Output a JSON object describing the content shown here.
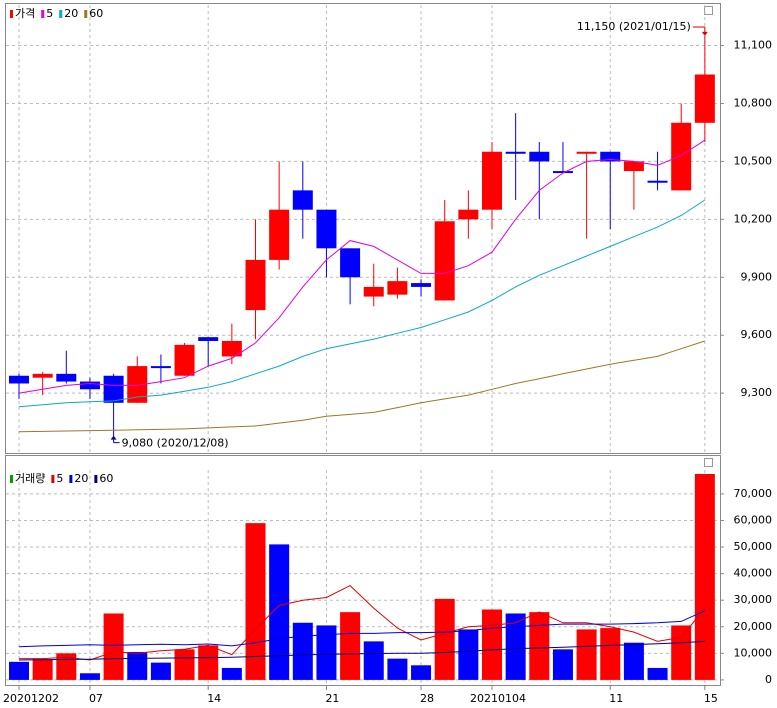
{
  "chart_data": [
    {
      "type": "candlestick",
      "candles": {
        "name": "가격",
        "up_color": "#ff0000",
        "down_color": "#0000ff",
        "open": [
          9390,
          9380,
          9400,
          9360,
          9390,
          9250,
          9440,
          9390,
          9590,
          9490,
          9730,
          9990,
          10350,
          10250,
          10050,
          9800,
          9810,
          9870,
          9780,
          10200,
          10250,
          10550,
          10550,
          10450,
          10540,
          10550,
          10450,
          10400,
          10350,
          10700
        ],
        "high": [
          9400,
          9410,
          9520,
          9380,
          9400,
          9490,
          9500,
          9560,
          9590,
          9660,
          10200,
          10500,
          10500,
          10250,
          10050,
          9970,
          9950,
          9890,
          10300,
          10350,
          10600,
          10750,
          10600,
          10600,
          10550,
          10550,
          10500,
          10550,
          10800,
          11150
        ],
        "low": [
          9270,
          9290,
          9350,
          9270,
          9080,
          9250,
          9350,
          9390,
          9440,
          9450,
          9580,
          9940,
          10100,
          9900,
          9760,
          9750,
          9790,
          9800,
          9780,
          10100,
          10150,
          10300,
          10200,
          10450,
          10100,
          10150,
          10250,
          10350,
          10350,
          10600
        ],
        "close": [
          9350,
          9400,
          9360,
          9320,
          9250,
          9440,
          9430,
          9550,
          9570,
          9570,
          9990,
          10250,
          10250,
          10050,
          9900,
          9850,
          9880,
          9850,
          10190,
          10250,
          10550,
          10540,
          10500,
          10440,
          10550,
          10500,
          10500,
          10390,
          10700,
          10950
        ]
      },
      "series": [
        {
          "name": "5",
          "color": "#e000e0",
          "values": [
            9300,
            9320,
            9340,
            9350,
            9340,
            9340,
            9360,
            9380,
            9440,
            9480,
            9560,
            9690,
            9850,
            9990,
            10090,
            10060,
            9990,
            9920,
            9920,
            9960,
            10030,
            10200,
            10350,
            10440,
            10500,
            10510,
            10500,
            10480,
            10530,
            10610
          ]
        },
        {
          "name": "20",
          "color": "#0aa8c8",
          "values": [
            9230,
            9240,
            9250,
            9255,
            9260,
            9280,
            9290,
            9310,
            9330,
            9360,
            9400,
            9440,
            9490,
            9530,
            9555,
            9580,
            9610,
            9640,
            9680,
            9720,
            9780,
            9850,
            9910,
            9960,
            10010,
            10060,
            10110,
            10160,
            10220,
            10300
          ]
        },
        {
          "name": "60",
          "color": "#9a7a20",
          "values": [
            9100,
            9102,
            9104,
            9106,
            9108,
            9110,
            9112,
            9115,
            9120,
            9125,
            9130,
            9145,
            9160,
            9180,
            9190,
            9200,
            9225,
            9250,
            9270,
            9290,
            9320,
            9350,
            9375,
            9400,
            9425,
            9450,
            9470,
            9490,
            9530,
            9570
          ]
        }
      ],
      "annotations": [
        {
          "text": "11,150 (2021/01/15)",
          "color": "#e00000"
        },
        {
          "text": "9,080 (2020/12/08)",
          "color": "#0000c0"
        }
      ],
      "ylim": [
        8990,
        11310
      ],
      "yticks": [
        {
          "value": 9300,
          "label": "9,300"
        },
        {
          "value": 9600,
          "label": "9,600"
        },
        {
          "value": 9900,
          "label": "9,900"
        },
        {
          "value": 10200,
          "label": "10,200"
        },
        {
          "value": 10500,
          "label": "10,500"
        },
        {
          "value": 10800,
          "label": "10,800"
        },
        {
          "value": 11100,
          "label": "11,100"
        }
      ],
      "grid": true
    },
    {
      "type": "bar",
      "categories": [
        "20201202",
        null,
        null,
        "07",
        null,
        null,
        null,
        null,
        "14",
        null,
        null,
        null,
        null,
        "21",
        null,
        null,
        null,
        "28",
        null,
        null,
        "20210104",
        null,
        null,
        null,
        null,
        "11",
        null,
        null,
        null,
        "15"
      ],
      "series": [
        {
          "name": "거래량",
          "color": "#00a000",
          "values": [
            6800,
            7800,
            10000,
            2500,
            25000,
            10500,
            6500,
            11500,
            13000,
            4500,
            59000,
            51000,
            21500,
            20500,
            25500,
            14500,
            8000,
            5500,
            30500,
            19000,
            26500,
            25000,
            25500,
            11500,
            19000,
            19500,
            14000,
            4500,
            20500,
            77500
          ],
          "colors": [
            "#0000ff",
            "#ff0000",
            "#ff0000",
            "#0000ff",
            "#ff0000",
            "#0000ff",
            "#0000ff",
            "#ff0000",
            "#ff0000",
            "#0000ff",
            "#ff0000",
            "#0000ff",
            "#0000ff",
            "#0000ff",
            "#ff0000",
            "#0000ff",
            "#0000ff",
            "#0000ff",
            "#ff0000",
            "#0000ff",
            "#ff0000",
            "#0000ff",
            "#ff0000",
            "#0000ff",
            "#ff0000",
            "#ff0000",
            "#0000ff",
            "#0000ff",
            "#ff0000",
            "#ff0000"
          ]
        },
        {
          "name": "5",
          "color": "#e00000",
          "values": [
            8000,
            8000,
            8500,
            7500,
            10500,
            10000,
            11000,
            11500,
            13000,
            9500,
            19000,
            28000,
            30000,
            31000,
            35500,
            27000,
            19500,
            15000,
            17500,
            20000,
            20500,
            21500,
            25500,
            21500,
            21500,
            20000,
            18000,
            14500,
            16000,
            27000
          ]
        },
        {
          "name": "20",
          "color": "#0000e0",
          "values": [
            12500,
            12800,
            13000,
            13200,
            13000,
            13200,
            13400,
            13200,
            13500,
            12800,
            14000,
            15500,
            16500,
            17000,
            17500,
            17500,
            17800,
            17800,
            18000,
            18500,
            19500,
            20000,
            20500,
            21000,
            21000,
            21000,
            21200,
            21500,
            22000,
            26000
          ]
        },
        {
          "name": "60",
          "color": "#000080",
          "values": [
            7500,
            7600,
            7700,
            7800,
            8000,
            8100,
            8200,
            8300,
            8400,
            8500,
            8800,
            9100,
            9400,
            9600,
            9800,
            9900,
            10000,
            10000,
            10300,
            10800,
            11300,
            11800,
            12000,
            12300,
            12600,
            13000,
            13300,
            13600,
            14000,
            14500
          ]
        }
      ],
      "ylim": [
        -3800,
        79000
      ],
      "yticks": [
        0,
        {
          "value": 10000,
          "label": "10,000"
        },
        {
          "value": 20000,
          "label": "20,000"
        },
        {
          "value": 30000,
          "label": "30,000"
        },
        {
          "value": 40000,
          "label": "40,000"
        },
        {
          "value": 50000,
          "label": "50,000"
        },
        {
          "value": 60000,
          "label": "60,000"
        },
        {
          "value": 70000,
          "label": "70,000"
        }
      ],
      "grid": true
    }
  ]
}
